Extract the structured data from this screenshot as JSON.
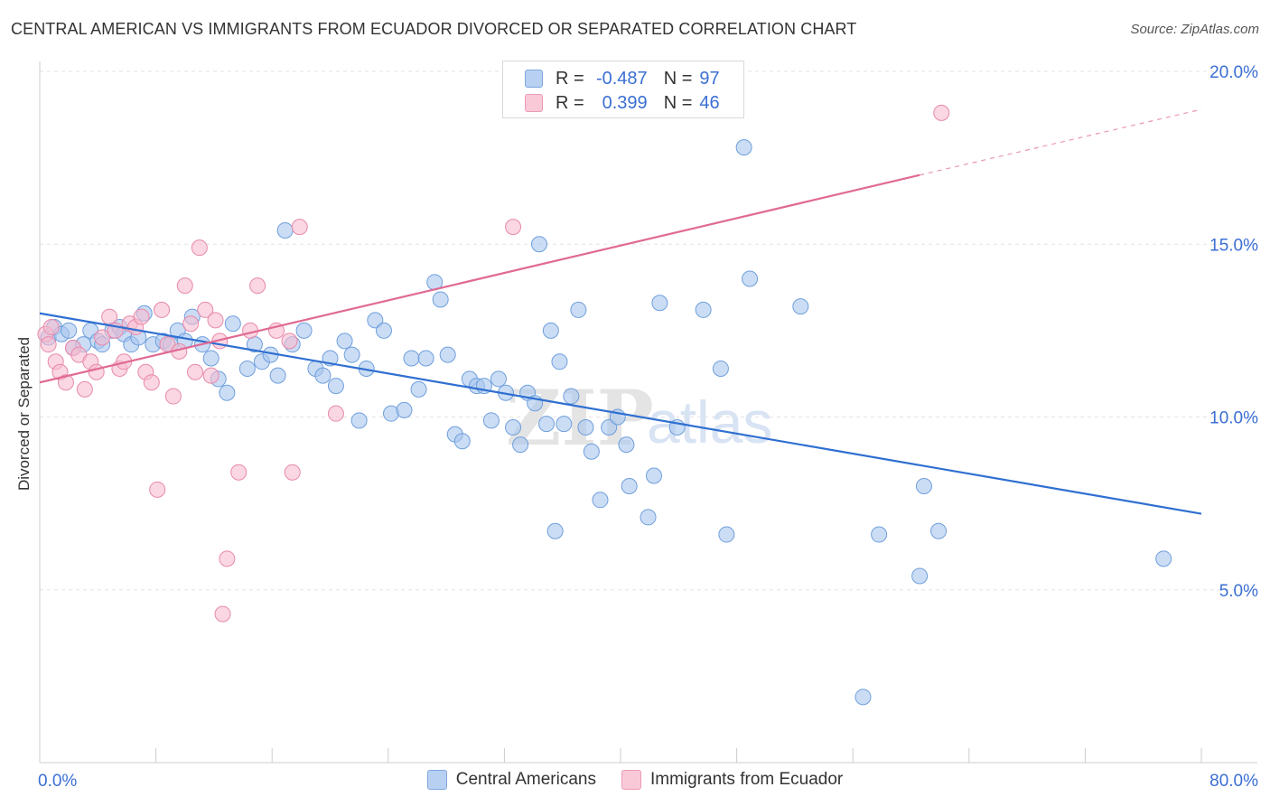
{
  "header": {
    "title": "CENTRAL AMERICAN VS IMMIGRANTS FROM ECUADOR DIVORCED OR SEPARATED CORRELATION CHART",
    "source": "Source: ZipAtlas.com"
  },
  "watermark": {
    "zip": "ZIP",
    "atlas": "atlas"
  },
  "legend": {
    "series1": {
      "r_label": "R =",
      "r_value": "-0.487",
      "n_label": "N =",
      "n_value": "97"
    },
    "series2": {
      "r_label": "R =",
      "r_value": "0.399",
      "n_label": "N =",
      "n_value": "46"
    }
  },
  "bottom_legend": {
    "series1": "Central Americans",
    "series2": "Immigrants from Ecuador"
  },
  "colors": {
    "blue_fill": "#a9c6ef",
    "blue_stroke": "#6f9fdc",
    "blue_line": "#2f6fd1",
    "pink_fill": "#f6bdd0",
    "pink_stroke": "#e889aa",
    "pink_line": "#e06a94",
    "axis_label": "#3b6fd4"
  },
  "chart_data": {
    "type": "scatter",
    "title": "CENTRAL AMERICAN VS IMMIGRANTS FROM ECUADOR DIVORCED OR SEPARATED CORRELATION CHART",
    "xlabel": "",
    "ylabel": "Divorced or Separated",
    "xlim": [
      0,
      80
    ],
    "ylim": [
      0,
      20
    ],
    "x_tick_labels": [
      "0.0%",
      "80.0%"
    ],
    "y_ticks": [
      5,
      10,
      15,
      20
    ],
    "y_tick_labels": [
      "5.0%",
      "10.0%",
      "15.0%",
      "20.0%"
    ],
    "series": [
      {
        "name": "Central Americans",
        "trend": {
          "x0": 0,
          "y0": 13.0,
          "x1": 80,
          "y1": 7.2
        },
        "points": [
          [
            0.6,
            12.3
          ],
          [
            1.0,
            12.6
          ],
          [
            1.5,
            12.4
          ],
          [
            2.0,
            12.5
          ],
          [
            2.3,
            12.0
          ],
          [
            3.0,
            12.1
          ],
          [
            3.5,
            12.5
          ],
          [
            4.0,
            12.2
          ],
          [
            4.3,
            12.1
          ],
          [
            5.0,
            12.5
          ],
          [
            5.5,
            12.6
          ],
          [
            5.8,
            12.4
          ],
          [
            6.3,
            12.1
          ],
          [
            6.8,
            12.3
          ],
          [
            7.2,
            13.0
          ],
          [
            7.8,
            12.1
          ],
          [
            8.5,
            12.2
          ],
          [
            9.0,
            12.1
          ],
          [
            9.5,
            12.5
          ],
          [
            10.0,
            12.2
          ],
          [
            10.5,
            12.9
          ],
          [
            11.2,
            12.1
          ],
          [
            11.8,
            11.7
          ],
          [
            12.3,
            11.1
          ],
          [
            12.9,
            10.7
          ],
          [
            13.3,
            12.7
          ],
          [
            14.3,
            11.4
          ],
          [
            14.8,
            12.1
          ],
          [
            15.3,
            11.6
          ],
          [
            15.9,
            11.8
          ],
          [
            16.4,
            11.2
          ],
          [
            16.9,
            15.4
          ],
          [
            17.4,
            12.1
          ],
          [
            18.2,
            12.5
          ],
          [
            19.0,
            11.4
          ],
          [
            19.5,
            11.2
          ],
          [
            20.0,
            11.7
          ],
          [
            20.4,
            10.9
          ],
          [
            21.0,
            12.2
          ],
          [
            21.5,
            11.8
          ],
          [
            22.0,
            9.9
          ],
          [
            22.5,
            11.4
          ],
          [
            23.1,
            12.8
          ],
          [
            23.7,
            12.5
          ],
          [
            24.2,
            10.1
          ],
          [
            25.1,
            10.2
          ],
          [
            25.6,
            11.7
          ],
          [
            26.1,
            10.8
          ],
          [
            26.6,
            11.7
          ],
          [
            27.2,
            13.9
          ],
          [
            27.6,
            13.4
          ],
          [
            28.1,
            11.8
          ],
          [
            28.6,
            9.5
          ],
          [
            29.1,
            9.3
          ],
          [
            29.6,
            11.1
          ],
          [
            30.1,
            10.9
          ],
          [
            30.6,
            10.9
          ],
          [
            31.1,
            9.9
          ],
          [
            31.6,
            11.1
          ],
          [
            32.1,
            10.7
          ],
          [
            32.6,
            9.7
          ],
          [
            33.1,
            9.2
          ],
          [
            33.6,
            10.7
          ],
          [
            34.1,
            10.4
          ],
          [
            34.4,
            15.0
          ],
          [
            34.9,
            9.8
          ],
          [
            35.2,
            12.5
          ],
          [
            35.5,
            6.7
          ],
          [
            35.8,
            11.6
          ],
          [
            36.1,
            9.8
          ],
          [
            36.6,
            10.6
          ],
          [
            37.1,
            13.1
          ],
          [
            37.6,
            9.7
          ],
          [
            38.0,
            9.0
          ],
          [
            38.6,
            7.6
          ],
          [
            39.2,
            9.7
          ],
          [
            39.8,
            10.0
          ],
          [
            40.4,
            9.2
          ],
          [
            40.6,
            8.0
          ],
          [
            41.9,
            7.1
          ],
          [
            42.3,
            8.3
          ],
          [
            42.7,
            13.3
          ],
          [
            43.9,
            9.7
          ],
          [
            45.7,
            13.1
          ],
          [
            46.9,
            11.4
          ],
          [
            47.3,
            6.6
          ],
          [
            48.5,
            17.8
          ],
          [
            48.9,
            14.0
          ],
          [
            52.4,
            13.2
          ],
          [
            56.7,
            1.9
          ],
          [
            57.8,
            6.6
          ],
          [
            60.6,
            5.4
          ],
          [
            60.9,
            8.0
          ],
          [
            61.9,
            6.7
          ],
          [
            77.4,
            5.9
          ]
        ]
      },
      {
        "name": "Immigrants from Ecuador",
        "trend": {
          "x0": 0,
          "y0": 11.0,
          "x1": 60.6,
          "y1": 17.0,
          "dashed_to_x": 80,
          "dashed_to_y": 18.9
        },
        "points": [
          [
            0.4,
            12.4
          ],
          [
            0.6,
            12.1
          ],
          [
            0.8,
            12.6
          ],
          [
            1.1,
            11.6
          ],
          [
            1.4,
            11.3
          ],
          [
            1.8,
            11.0
          ],
          [
            2.3,
            12.0
          ],
          [
            2.7,
            11.8
          ],
          [
            3.1,
            10.8
          ],
          [
            3.5,
            11.6
          ],
          [
            3.9,
            11.3
          ],
          [
            4.3,
            12.3
          ],
          [
            4.8,
            12.9
          ],
          [
            5.2,
            12.5
          ],
          [
            5.5,
            11.4
          ],
          [
            5.8,
            11.6
          ],
          [
            6.2,
            12.7
          ],
          [
            6.6,
            12.6
          ],
          [
            7.0,
            12.9
          ],
          [
            7.3,
            11.3
          ],
          [
            7.7,
            11.0
          ],
          [
            8.1,
            7.9
          ],
          [
            8.4,
            13.1
          ],
          [
            8.8,
            12.1
          ],
          [
            9.2,
            10.6
          ],
          [
            9.6,
            11.9
          ],
          [
            10.0,
            13.8
          ],
          [
            10.4,
            12.7
          ],
          [
            10.7,
            11.3
          ],
          [
            11.0,
            14.9
          ],
          [
            11.4,
            13.1
          ],
          [
            11.8,
            11.2
          ],
          [
            12.1,
            12.8
          ],
          [
            12.4,
            12.2
          ],
          [
            12.9,
            5.9
          ],
          [
            12.6,
            4.3
          ],
          [
            13.7,
            8.4
          ],
          [
            14.5,
            12.5
          ],
          [
            15.0,
            13.8
          ],
          [
            16.3,
            12.5
          ],
          [
            17.2,
            12.2
          ],
          [
            17.4,
            8.4
          ],
          [
            17.9,
            15.5
          ],
          [
            20.4,
            10.1
          ],
          [
            32.6,
            15.5
          ],
          [
            62.1,
            18.8
          ]
        ]
      }
    ]
  }
}
